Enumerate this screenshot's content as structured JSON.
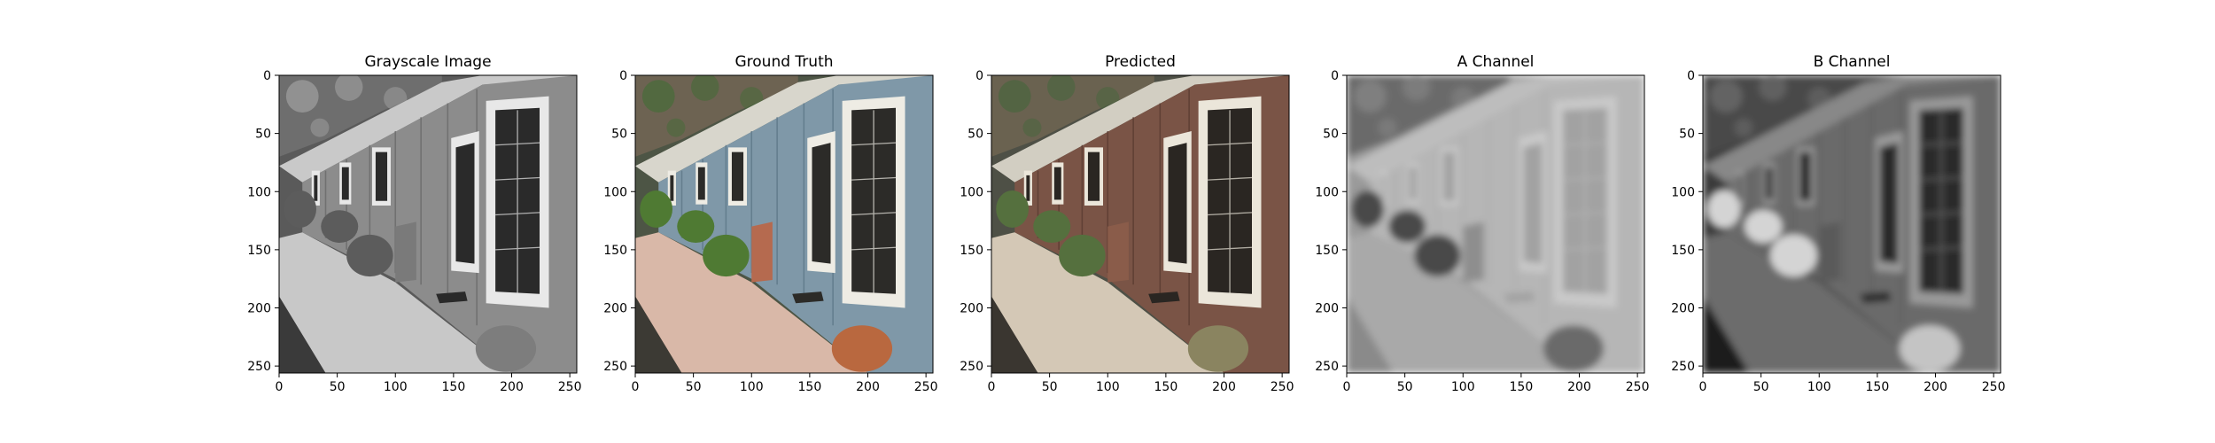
{
  "chart_data": [
    {
      "type": "image",
      "title": "Grayscale Image",
      "xlim": [
        0,
        256
      ],
      "ylim": [
        256,
        0
      ],
      "xticks": [
        0,
        50,
        100,
        150,
        200,
        250
      ],
      "yticks": [
        0,
        50,
        100,
        150,
        200,
        250
      ],
      "colormap": "gray"
    },
    {
      "type": "image",
      "title": "Ground Truth",
      "xlim": [
        0,
        256
      ],
      "ylim": [
        256,
        0
      ],
      "xticks": [
        0,
        50,
        100,
        150,
        200,
        250
      ],
      "yticks": [
        0,
        50,
        100,
        150,
        200,
        250
      ],
      "colormap": "rgb"
    },
    {
      "type": "image",
      "title": "Predicted",
      "xlim": [
        0,
        256
      ],
      "ylim": [
        256,
        0
      ],
      "xticks": [
        0,
        50,
        100,
        150,
        200,
        250
      ],
      "yticks": [
        0,
        50,
        100,
        150,
        200,
        250
      ],
      "colormap": "rgb-muted"
    },
    {
      "type": "image",
      "title": "A Channel",
      "xlim": [
        0,
        256
      ],
      "ylim": [
        256,
        0
      ],
      "xticks": [
        0,
        50,
        100,
        150,
        200,
        250
      ],
      "yticks": [
        0,
        50,
        100,
        150,
        200,
        250
      ],
      "colormap": "gray-flat"
    },
    {
      "type": "image",
      "title": "B Channel",
      "xlim": [
        0,
        256
      ],
      "ylim": [
        256,
        0
      ],
      "xticks": [
        0,
        50,
        100,
        150,
        200,
        250
      ],
      "yticks": [
        0,
        50,
        100,
        150,
        200,
        250
      ],
      "colormap": "gray-dark"
    }
  ],
  "colors": {
    "background": "#ffffff",
    "axis": "#000000"
  }
}
